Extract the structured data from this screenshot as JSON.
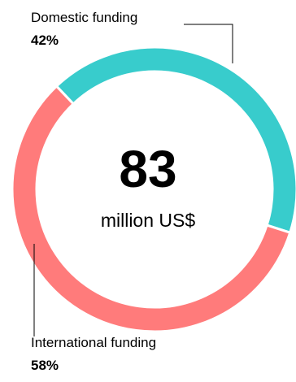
{
  "chart_data": {
    "type": "pie",
    "style": "donut",
    "categories": [
      "Domestic funding",
      "International funding"
    ],
    "values": [
      42,
      58
    ],
    "value_labels": [
      "42%",
      "58%"
    ],
    "colors": [
      "#38CCCC",
      "#FF7B7B"
    ],
    "center": {
      "value": "83",
      "unit": "million US$"
    },
    "legend": "none"
  }
}
